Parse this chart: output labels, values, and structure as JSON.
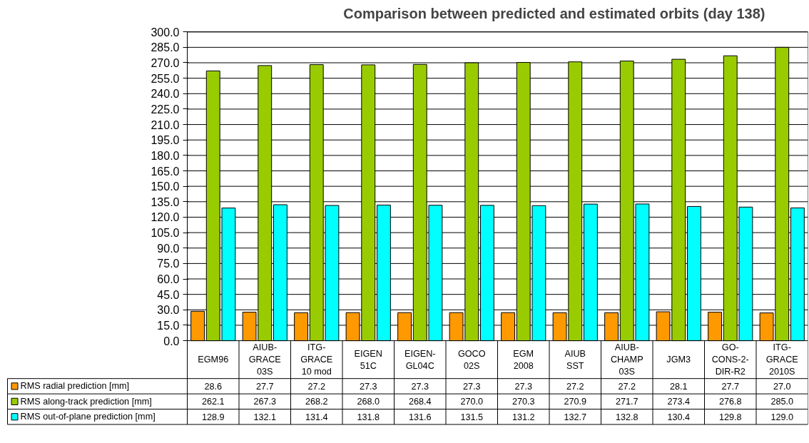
{
  "chart_data": {
    "type": "bar",
    "title": "Comparison between predicted and estimated orbits (day 138)",
    "categories": [
      "EGM96",
      "AIUB-GRACE 03S",
      "ITG-GRACE 10 mod",
      "EIGEN 51C",
      "EIGEN-GL04C",
      "GOCO 02S",
      "EGM 2008",
      "AIUB SST",
      "AIUB-CHAMP 03S",
      "JGM3",
      "GO-CONS-2-DIR-R2",
      "ITG-GRACE 2010S"
    ],
    "series": [
      {
        "name": "RMS radial prediction [mm]",
        "color": "#ff9900",
        "values": [
          28.6,
          27.7,
          27.2,
          27.3,
          27.3,
          27.3,
          27.3,
          27.2,
          27.2,
          28.1,
          27.7,
          27.0
        ],
        "value_labels": [
          "28.6",
          "27.7",
          "27.2",
          "27.3",
          "27.3",
          "27.3",
          "27.3",
          "27.2",
          "27.2",
          "28.1",
          "27.7",
          "27.0"
        ]
      },
      {
        "name": "RMS along-track prediction [mm]",
        "color": "#99cc00",
        "values": [
          262.1,
          267.3,
          268.2,
          268.0,
          268.4,
          270.0,
          270.3,
          270.9,
          271.7,
          273.4,
          276.8,
          285.0
        ],
        "value_labels": [
          "262.1",
          "267.3",
          "268.2",
          "268.0",
          "268.4",
          "270.0",
          "270.3",
          "270.9",
          "271.7",
          "273.4",
          "276.8",
          "285.0"
        ]
      },
      {
        "name": "RMS out-of-plane prediction [mm]",
        "color": "#00ffff",
        "values": [
          128.9,
          132.1,
          131.4,
          131.8,
          131.6,
          131.5,
          131.2,
          132.7,
          132.8,
          130.4,
          129.8,
          129.0
        ],
        "value_labels": [
          "128.9",
          "132.1",
          "131.4",
          "131.8",
          "131.6",
          "131.5",
          "131.2",
          "132.7",
          "132.8",
          "130.4",
          "129.8",
          "129.0"
        ]
      }
    ],
    "ylim": [
      0,
      300
    ],
    "yticks": [
      {
        "value": 0,
        "label": "0.0"
      },
      {
        "value": 15,
        "label": "15.0"
      },
      {
        "value": 30,
        "label": "30.0"
      },
      {
        "value": 45,
        "label": "45.0"
      },
      {
        "value": 60,
        "label": "60.0"
      },
      {
        "value": 75,
        "label": "75.0"
      },
      {
        "value": 90,
        "label": "90.0"
      },
      {
        "value": 105,
        "label": "105.0"
      },
      {
        "value": 120,
        "label": "120.0"
      },
      {
        "value": 135,
        "label": "135.0"
      },
      {
        "value": 150,
        "label": "150.0"
      },
      {
        "value": 165,
        "label": "165.0"
      },
      {
        "value": 180,
        "label": "180.0"
      },
      {
        "value": 195,
        "label": "195.0"
      },
      {
        "value": 210,
        "label": "210.0"
      },
      {
        "value": 225,
        "label": "225.0"
      },
      {
        "value": 240,
        "label": "240.0"
      },
      {
        "value": 255,
        "label": "255.0"
      },
      {
        "value": 270,
        "label": "270.0"
      },
      {
        "value": 285,
        "label": "285.0"
      },
      {
        "value": 300,
        "label": "300.0"
      }
    ],
    "grid": "y",
    "legend": "bottom left"
  }
}
